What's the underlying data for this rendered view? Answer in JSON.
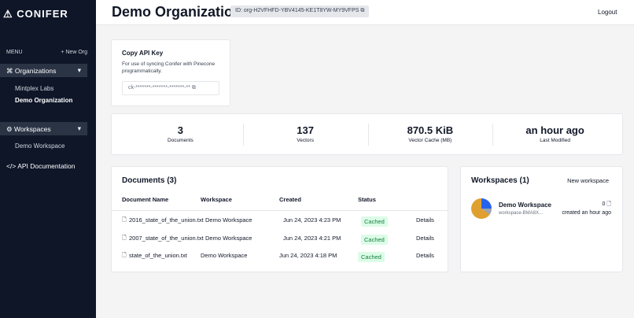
{
  "sidebar": {
    "logo": "CONIFER",
    "menu_label": "MENU",
    "new_org": "+ New Org",
    "organizations": {
      "label": "Organizations",
      "items": [
        "Mintplex Labs",
        "Demo Organization"
      ]
    },
    "workspaces": {
      "label": "Workspaces",
      "items": [
        "Demo Workspace"
      ]
    },
    "api_docs": "API Documentation"
  },
  "header": {
    "title": "Demo Organization",
    "org_id": "ID: org-H2VFHFD-YBV4145-KE1T8YW-MY9VFPS",
    "logout": "Logout"
  },
  "api_key": {
    "title": "Copy API Key",
    "description": "For use of syncing Conifer with Pinecone programmatically.",
    "masked_key": "ck-*******-*******-*******-**"
  },
  "stats": [
    {
      "value": 3,
      "label": "Documents"
    },
    {
      "value": 137,
      "label": "Vectors"
    },
    {
      "value": "870.5 KiB",
      "label": "Vector Cache (MB)"
    },
    {
      "value": "an hour ago",
      "label": "Last Modified"
    }
  ],
  "documents": {
    "title": "Documents (3)",
    "columns": [
      "Document Name",
      "Workspace",
      "Created",
      "Status"
    ],
    "rows": [
      [
        "2016_state_of_the_union.txt",
        "Demo Workspace",
        "Jun 24, 2023 4:23 PM",
        "Cached",
        "Details"
      ],
      [
        "2007_state_of_the_union.txt",
        "Demo Workspace",
        "Jun 24, 2023 4:21 PM",
        "Cached",
        "Details"
      ],
      [
        "state_of_the_union.txt",
        "Demo Workspace",
        "Jun 24, 2023 4:18 PM",
        "Cached",
        "Details"
      ]
    ]
  },
  "workspaces_panel": {
    "title": "Workspaces (1)",
    "new_workspace": "New workspace",
    "items": [
      {
        "name": "Demo Workspace",
        "slug": "workspace-BMA8X...",
        "count": 0,
        "created": "created an hour ago"
      }
    ]
  }
}
